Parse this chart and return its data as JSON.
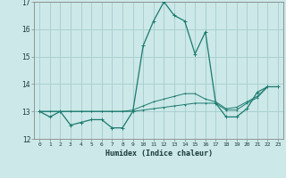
{
  "xlabel": "Humidex (Indice chaleur)",
  "x": [
    0,
    1,
    2,
    3,
    4,
    5,
    6,
    7,
    8,
    9,
    10,
    11,
    12,
    13,
    14,
    15,
    16,
    17,
    18,
    19,
    20,
    21,
    22,
    23
  ],
  "line1_y": [
    13.0,
    12.8,
    13.0,
    12.5,
    12.6,
    12.7,
    12.7,
    12.4,
    12.4,
    13.0,
    15.4,
    16.3,
    17.0,
    16.5,
    16.3,
    15.1,
    15.9,
    13.3,
    12.8,
    12.8,
    13.1,
    13.7,
    13.9,
    13.9
  ],
  "line2_y": [
    13.0,
    13.0,
    13.0,
    13.0,
    13.0,
    13.0,
    13.0,
    13.0,
    13.0,
    13.0,
    13.05,
    13.1,
    13.15,
    13.2,
    13.25,
    13.3,
    13.3,
    13.3,
    13.05,
    13.05,
    13.3,
    13.5,
    13.9,
    13.9
  ],
  "line3_y": [
    13.0,
    13.0,
    13.0,
    13.0,
    13.0,
    13.0,
    13.0,
    13.0,
    13.0,
    13.05,
    13.2,
    13.35,
    13.45,
    13.55,
    13.65,
    13.65,
    13.45,
    13.35,
    13.1,
    13.15,
    13.35,
    13.55,
    13.9,
    13.9
  ],
  "line_color": "#1a7a6e",
  "bg_color": "#cce8e8",
  "grid_color": "#aad0d0",
  "ylim": [
    12,
    17
  ],
  "xlim": [
    -0.5,
    23.5
  ],
  "yticks": [
    12,
    13,
    14,
    15,
    16,
    17
  ],
  "xtick_labels": [
    "0",
    "1",
    "2",
    "3",
    "4",
    "5",
    "6",
    "7",
    "8",
    "9",
    "10",
    "11",
    "12",
    "13",
    "14",
    "15",
    "16",
    "17",
    "18",
    "19",
    "20",
    "21",
    "22",
    "23"
  ]
}
